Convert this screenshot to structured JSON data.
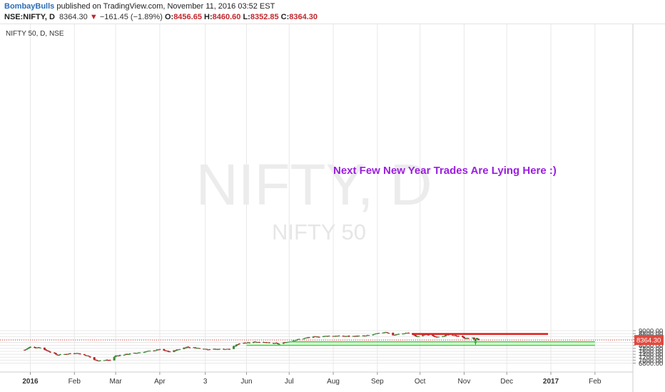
{
  "header": {
    "author": "BombayBulls",
    "published": "published on TradingView.com, November 11, 2016 03:52 EST",
    "symbol": "NSE:NIFTY, D",
    "last": "8364.30",
    "change_arrow": "▼",
    "change": "−161.45 (−1.89%)",
    "o_label": "O:",
    "o": "8456.65",
    "h_label": "H:",
    "h": "8460.60",
    "l_label": "L:",
    "l": "8352.85",
    "c_label": "C:",
    "c": "8364.30"
  },
  "chart_data": {
    "type": "candlestick",
    "symbol_label": "NIFTY 50, D, NSE",
    "watermark": {
      "line1": "NIFTY, D",
      "line2": "NIFTY 50"
    },
    "y_axis": {
      "min": 6700,
      "max": 9100,
      "ticks": [
        6800,
        7000,
        7200,
        7400,
        7600,
        7800,
        8000,
        8200,
        8400,
        8600,
        8800,
        9000
      ],
      "tick_labels": [
        "6800.00",
        "7000.00",
        "7200.00",
        "7400.00",
        "7600.00",
        "7800.00",
        "8000.00",
        "8200.00",
        "8400.00",
        "8600.00",
        "8800.00",
        "9000.00"
      ]
    },
    "x_axis": {
      "labels": [
        "2016",
        "Feb",
        "Mar",
        "Apr",
        "3",
        "Jun",
        "Jul",
        "Aug",
        "Sep",
        "Oct",
        "Nov",
        "Dec",
        "2017",
        "Feb"
      ],
      "bold": [
        "2016",
        "2017"
      ]
    },
    "price_marker": {
      "value": 8364.3,
      "label": "8364.30",
      "color": "#e04a3f"
    },
    "horizontal_lines": [
      {
        "value": 8800,
        "color": "#e02020",
        "from": "2016-09-26",
        "to": "2016-12-30"
      },
      {
        "value": 8755,
        "color": "#e02020",
        "from": "2016-09-26",
        "to": "2016-12-30"
      },
      {
        "value": 8245,
        "color": "#33dd33",
        "from": "2016-07-01",
        "to": "2017-02-01"
      },
      {
        "value": 8010,
        "color": "#33dd33",
        "from": "2016-06-01",
        "to": "2017-02-01"
      }
    ],
    "annotation": {
      "text": "Next Few New Year Trades Are Lying Here :)",
      "color": "#9b1ee0"
    },
    "colors": {
      "up": "#3b8a3b",
      "down": "#b02525",
      "grid": "#e8e8e8"
    },
    "key_points": [
      {
        "date": "2015-12-28",
        "close": 7700
      },
      {
        "date": "2016-01-01",
        "close": 7900
      },
      {
        "date": "2016-01-08",
        "close": 7850
      },
      {
        "date": "2016-01-20",
        "close": 7350
      },
      {
        "date": "2016-02-02",
        "close": 7500
      },
      {
        "date": "2016-02-10",
        "close": 7300
      },
      {
        "date": "2016-02-16",
        "close": 6980
      },
      {
        "date": "2016-02-26",
        "close": 7000
      },
      {
        "date": "2016-03-01",
        "close": 7300
      },
      {
        "date": "2016-03-16",
        "close": 7500
      },
      {
        "date": "2016-04-01",
        "close": 7720
      },
      {
        "date": "2016-04-08",
        "close": 7560
      },
      {
        "date": "2016-04-20",
        "close": 7900
      },
      {
        "date": "2016-05-06",
        "close": 7740
      },
      {
        "date": "2016-05-20",
        "close": 7750
      },
      {
        "date": "2016-05-27",
        "close": 8150
      },
      {
        "date": "2016-06-08",
        "close": 8250
      },
      {
        "date": "2016-06-24",
        "close": 8100
      },
      {
        "date": "2016-07-04",
        "close": 8350
      },
      {
        "date": "2016-07-15",
        "close": 8550
      },
      {
        "date": "2016-07-29",
        "close": 8650
      },
      {
        "date": "2016-08-12",
        "close": 8620
      },
      {
        "date": "2016-08-24",
        "close": 8650
      },
      {
        "date": "2016-09-01",
        "close": 8800
      },
      {
        "date": "2016-09-07",
        "close": 8920
      },
      {
        "date": "2016-09-12",
        "close": 8700
      },
      {
        "date": "2016-09-22",
        "close": 8860
      },
      {
        "date": "2016-09-29",
        "close": 8600
      },
      {
        "date": "2016-10-05",
        "close": 8750
      },
      {
        "date": "2016-10-12",
        "close": 8580
      },
      {
        "date": "2016-10-20",
        "close": 8700
      },
      {
        "date": "2016-10-28",
        "close": 8640
      },
      {
        "date": "2016-11-02",
        "close": 8480
      },
      {
        "date": "2016-11-07",
        "close": 8500
      },
      {
        "date": "2016-11-08",
        "close": 8430
      },
      {
        "date": "2016-11-09",
        "close": 8460
      },
      {
        "date": "2016-11-10",
        "close": 8525
      },
      {
        "date": "2016-11-11",
        "close": 8364.3
      }
    ]
  }
}
